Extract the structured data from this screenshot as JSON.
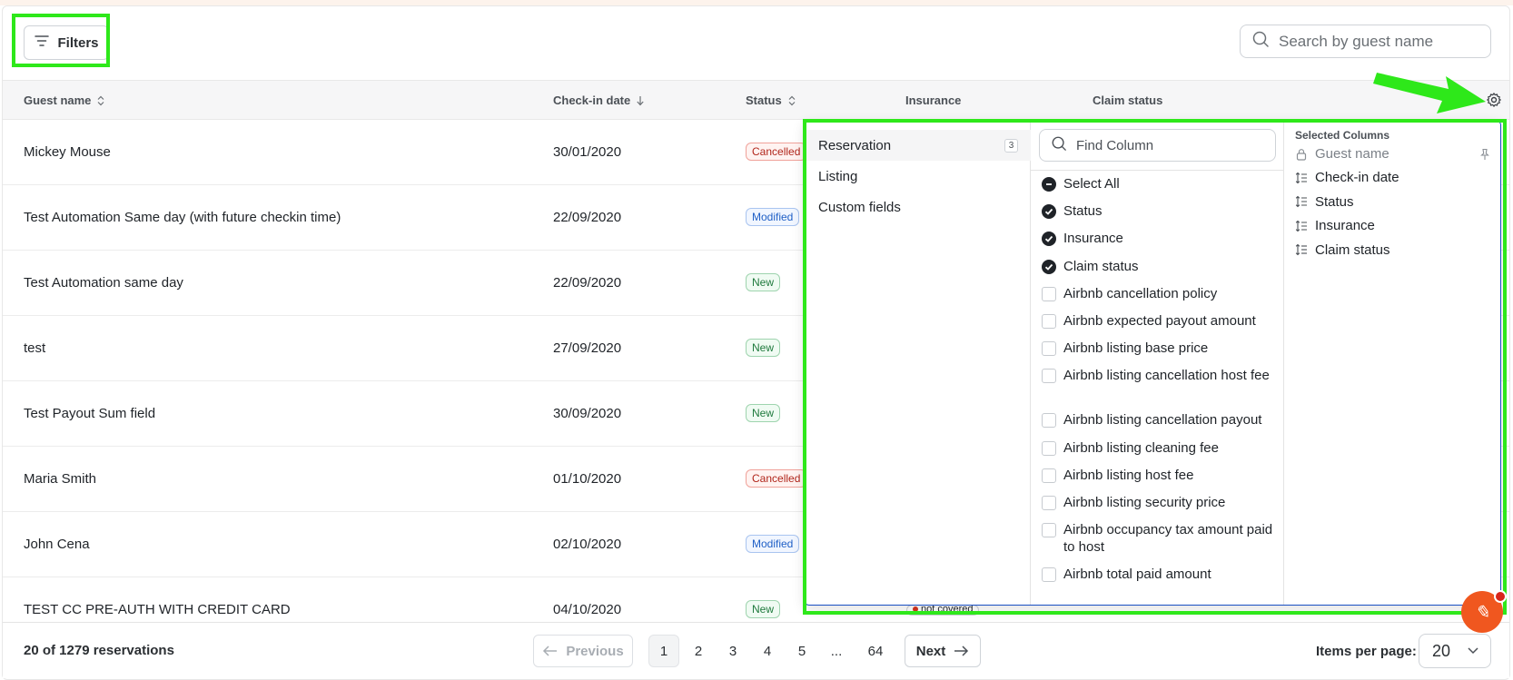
{
  "toolbar": {
    "filters_label": "Filters",
    "search_placeholder": "Search by guest name"
  },
  "table": {
    "headers": [
      "Guest name",
      "Check-in date",
      "Status",
      "Insurance",
      "Claim status"
    ],
    "rows": [
      {
        "guest": "Mickey Mouse",
        "checkin": "30/01/2020",
        "status": "Cancelled",
        "status_type": "cancelled"
      },
      {
        "guest": "Test Automation Same day (with future checkin time)",
        "checkin": "22/09/2020",
        "status": "Modified",
        "status_type": "modified"
      },
      {
        "guest": "Test Automation same day",
        "checkin": "22/09/2020",
        "status": "New",
        "status_type": "new"
      },
      {
        "guest": "test",
        "checkin": "27/09/2020",
        "status": "New",
        "status_type": "new"
      },
      {
        "guest": "Test Payout Sum field",
        "checkin": "30/09/2020",
        "status": "New",
        "status_type": "new"
      },
      {
        "guest": "Maria Smith",
        "checkin": "01/10/2020",
        "status": "Cancelled",
        "status_type": "cancelled"
      },
      {
        "guest": "John Cena",
        "checkin": "02/10/2020",
        "status": "Modified",
        "status_type": "modified"
      },
      {
        "guest": "TEST CC PRE-AUTH WITH CREDIT CARD",
        "checkin": "04/10/2020",
        "status": "New",
        "status_type": "new"
      }
    ],
    "partial_insurance": "not covered"
  },
  "column_chooser": {
    "categories": [
      {
        "label": "Reservation",
        "count": "3"
      },
      {
        "label": "Listing"
      },
      {
        "label": "Custom fields"
      }
    ],
    "find_placeholder": "Find Column",
    "options": [
      {
        "label": "Select All",
        "state": "indeterminate"
      },
      {
        "label": "Status",
        "state": "checked"
      },
      {
        "label": "Insurance",
        "state": "checked"
      },
      {
        "label": "Claim status",
        "state": "checked"
      },
      {
        "label": "Airbnb cancellation policy",
        "state": "unchecked"
      },
      {
        "label": "Airbnb expected payout amount",
        "state": "unchecked"
      },
      {
        "label": "Airbnb listing base price",
        "state": "unchecked"
      },
      {
        "label": "Airbnb listing cancellation host fee",
        "state": "unchecked"
      },
      {
        "label": "Airbnb listing cancellation payout",
        "state": "unchecked"
      },
      {
        "label": "Airbnb listing cleaning fee",
        "state": "unchecked"
      },
      {
        "label": "Airbnb listing host fee",
        "state": "unchecked"
      },
      {
        "label": "Airbnb listing security price",
        "state": "unchecked"
      },
      {
        "label": "Airbnb occupancy tax amount paid to host",
        "state": "unchecked"
      },
      {
        "label": "Airbnb total paid amount",
        "state": "unchecked"
      }
    ],
    "selected_title": "Selected Columns",
    "selected": [
      "Guest name",
      "Check-in date",
      "Status",
      "Insurance",
      "Claim status"
    ]
  },
  "footer": {
    "count": "20 of 1279 reservations",
    "previous": "Previous",
    "next": "Next",
    "pages": [
      "1",
      "2",
      "3",
      "4",
      "5",
      "...",
      "64"
    ],
    "active_page": "1",
    "items_per_page_label": "Items per page:",
    "items_per_page": "20"
  },
  "colors": {
    "highlight": "#2ee81a",
    "chat": "#f0571f",
    "panel_border": "#1a4fc4"
  }
}
